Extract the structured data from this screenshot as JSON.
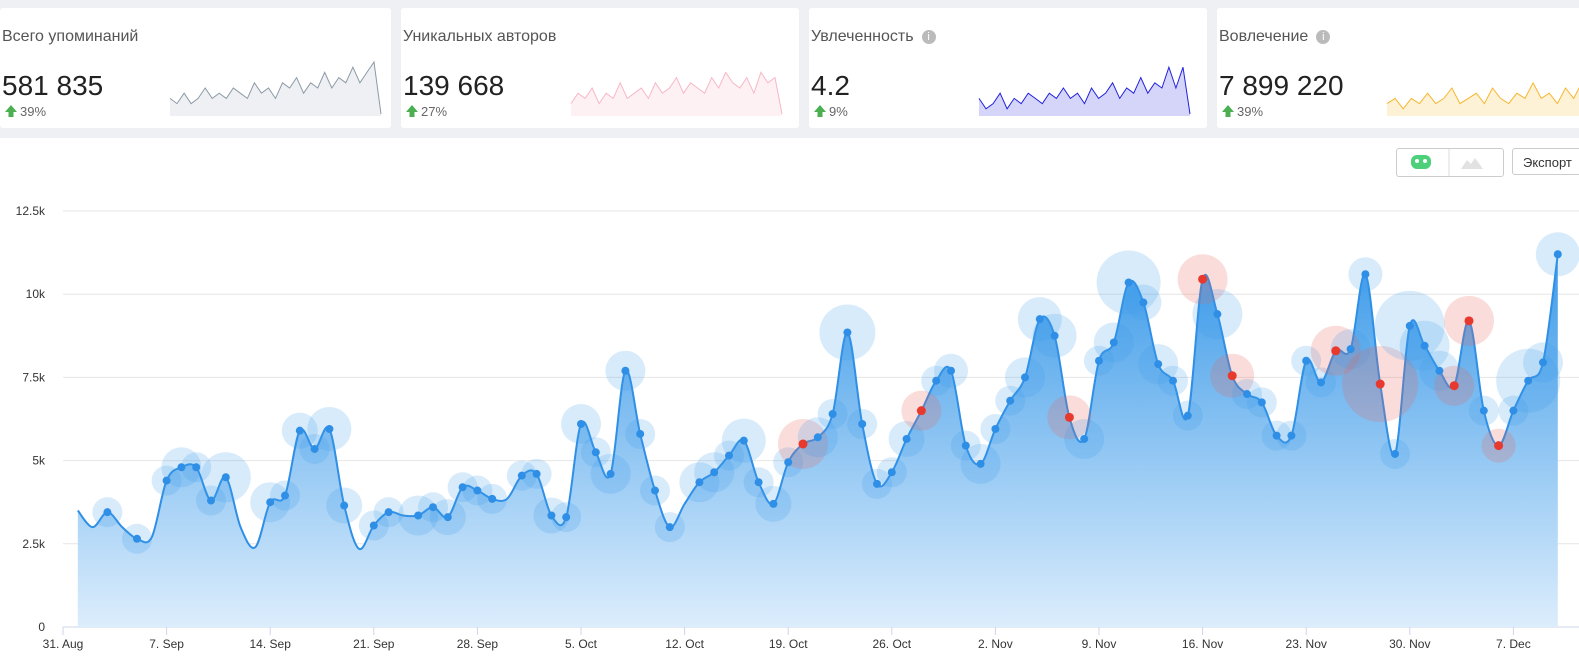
{
  "cards": [
    {
      "title": "Всего упоминаний",
      "value": "581 835",
      "change": "39%",
      "info": false
    },
    {
      "title": "Уникальных авторов",
      "value": "139 668",
      "change": "27%",
      "info": false
    },
    {
      "title": "Увлеченность",
      "value": "4.2",
      "change": "9%",
      "info": true
    },
    {
      "title": "Вовлечение",
      "value": "7 899 220",
      "change": "39%",
      "info": true
    }
  ],
  "export_button": "Экспорт",
  "chart_data": [
    {
      "type": "bubble-area",
      "x": [
        1,
        2,
        3,
        4,
        5,
        6,
        7,
        8,
        9,
        10,
        11,
        12,
        13,
        14,
        15,
        16,
        17,
        18,
        19,
        20,
        21,
        22,
        23,
        24,
        25,
        26,
        27,
        28,
        29,
        30,
        31,
        32,
        33,
        34,
        35,
        36,
        37,
        38,
        39,
        40,
        41,
        42,
        43,
        44,
        45,
        46,
        47,
        48,
        49,
        50,
        51,
        52,
        53,
        54,
        55,
        56,
        57,
        58,
        59,
        60,
        61,
        62,
        63,
        64,
        65,
        66,
        67,
        68,
        69,
        70,
        71,
        72,
        73,
        74,
        75,
        76,
        77,
        78,
        79,
        80,
        81,
        82,
        83,
        84,
        85,
        86,
        87,
        88,
        89,
        90,
        91,
        92,
        93,
        94,
        95,
        96,
        97,
        98,
        99,
        100,
        101
      ],
      "series": [
        {
          "color": "#2f8fe6",
          "values": [
            3500,
            3000,
            3450,
            3000,
            2650,
            2700,
            4400,
            4800,
            4800,
            3800,
            4500,
            3000,
            2400,
            3750,
            3950,
            5900,
            5350,
            5950,
            3650,
            2350,
            3050,
            3450,
            3350,
            3350,
            3600,
            3300,
            4200,
            4100,
            3850,
            3850,
            4550,
            4600,
            3350,
            3300,
            6100,
            5250,
            4600,
            7700,
            5800,
            4100,
            3000,
            3700,
            4350,
            4650,
            5150,
            5600,
            4350,
            3700,
            4950,
            5500,
            5700,
            6400,
            8850,
            6100,
            4300,
            4650,
            5650,
            6500,
            7400,
            7700,
            5450,
            4900,
            5950,
            6800,
            7500,
            9250,
            8750,
            6300,
            5650,
            8000,
            8550,
            10350,
            9750,
            7900,
            7400,
            6350,
            10450,
            9400,
            7550,
            7000,
            6750,
            5750,
            5750,
            8000,
            7350,
            8300,
            8350,
            10600,
            7300,
            5200,
            9050,
            8450,
            7700,
            7250,
            9200,
            6500,
            5450,
            6500,
            7400,
            7950,
            11200
          ],
          "sizes": [
            0,
            0,
            15,
            0,
            15,
            0,
            15,
            20,
            15,
            15,
            25,
            0,
            0,
            20,
            15,
            18,
            15,
            22,
            18,
            0,
            15,
            15,
            0,
            20,
            15,
            18,
            15,
            15,
            15,
            0,
            15,
            15,
            18,
            15,
            20,
            15,
            20,
            20,
            15,
            15,
            15,
            0,
            20,
            20,
            15,
            22,
            15,
            18,
            15,
            25,
            20,
            15,
            28,
            15,
            15,
            15,
            18,
            20,
            15,
            17,
            15,
            20,
            15,
            15,
            20,
            22,
            22,
            22,
            20,
            15,
            20,
            32,
            18,
            20,
            15,
            15,
            25,
            25,
            22,
            15,
            15,
            15,
            15,
            15,
            15,
            25,
            20,
            17,
            38,
            15,
            35,
            25,
            20,
            20,
            25,
            15,
            17,
            15,
            32,
            20,
            22
          ]
        },
        {
          "color": "#e8392e",
          "values": [
            null,
            null,
            null,
            null,
            null,
            null,
            null,
            null,
            null,
            null,
            null,
            null,
            null,
            null,
            null,
            null,
            null,
            null,
            null,
            null,
            null,
            null,
            null,
            null,
            null,
            null,
            null,
            null,
            null,
            null,
            null,
            null,
            null,
            null,
            null,
            null,
            null,
            null,
            null,
            null,
            null,
            null,
            null,
            null,
            null,
            null,
            null,
            null,
            null,
            5500,
            null,
            null,
            null,
            null,
            null,
            null,
            null,
            6500,
            null,
            null,
            null,
            null,
            null,
            null,
            null,
            null,
            null,
            6300,
            null,
            null,
            null,
            null,
            null,
            null,
            null,
            null,
            10450,
            null,
            7550,
            null,
            null,
            null,
            null,
            null,
            null,
            8300,
            null,
            null,
            7300,
            null,
            null,
            null,
            null,
            7250,
            9200,
            null,
            5450,
            null,
            null,
            null,
            null
          ]
        }
      ],
      "xlim": [
        0,
        102
      ],
      "xticks": [
        {
          "value": 0,
          "label": "31. Aug"
        },
        {
          "value": 7,
          "label": "7. Sep"
        },
        {
          "value": 14,
          "label": "14. Sep"
        },
        {
          "value": 21,
          "label": "21. Sep"
        },
        {
          "value": 28,
          "label": "28. Sep"
        },
        {
          "value": 35,
          "label": "5. Oct"
        },
        {
          "value": 42,
          "label": "12. Oct"
        },
        {
          "value": 49,
          "label": "19. Oct"
        },
        {
          "value": 56,
          "label": "26. Oct"
        },
        {
          "value": 63,
          "label": "2. Nov"
        },
        {
          "value": 70,
          "label": "9. Nov"
        },
        {
          "value": 77,
          "label": "16. Nov"
        },
        {
          "value": 84,
          "label": "23. Nov"
        },
        {
          "value": 91,
          "label": "30. Nov"
        },
        {
          "value": 98,
          "label": "7. Dec"
        }
      ],
      "ylim": [
        0,
        12500
      ],
      "yticks": [
        0,
        {
          "value": 2500,
          "label": "2.5k"
        },
        {
          "value": 5000,
          "label": "5k"
        },
        {
          "value": 7500,
          "label": "7.5k"
        },
        {
          "value": 10000,
          "label": "10k"
        },
        {
          "value": 12500,
          "label": "12.5k"
        }
      ],
      "grid": true
    },
    {
      "type": "sparkline",
      "color": "#8c9aa6",
      "fill": "#eef0f3",
      "ylim": [
        0,
        10
      ],
      "values": [
        3,
        2,
        4,
        2,
        3,
        5,
        3,
        4,
        3,
        5,
        4,
        3,
        6,
        4,
        5,
        3,
        6,
        5,
        7,
        4,
        6,
        5,
        8,
        5,
        7,
        6,
        9,
        6,
        8,
        10,
        0
      ]
    },
    {
      "type": "sparkline",
      "color": "#f7b7c5",
      "fill": "#fdf1f4",
      "ylim": [
        0,
        10
      ],
      "values": [
        2,
        4,
        3,
        5,
        2,
        4,
        3,
        6,
        3,
        4,
        5,
        3,
        6,
        4,
        5,
        7,
        4,
        6,
        5,
        4,
        7,
        5,
        8,
        6,
        5,
        7,
        4,
        8,
        6,
        7,
        0
      ]
    },
    {
      "type": "sparkline",
      "color": "#2222dd",
      "fill": "#d5d5fa",
      "ylim": [
        0,
        10
      ],
      "values": [
        3,
        1,
        2,
        4,
        1,
        3,
        2,
        4,
        3,
        2,
        4,
        3,
        5,
        3,
        4,
        2,
        5,
        3,
        4,
        6,
        3,
        5,
        4,
        7,
        4,
        6,
        5,
        9,
        5,
        9,
        0
      ]
    },
    {
      "type": "sparkline",
      "color": "#f5b72f",
      "fill": "#fdf1d6",
      "ylim": [
        0,
        10
      ],
      "values": [
        2,
        3,
        1,
        3,
        2,
        4,
        2,
        3,
        5,
        2,
        3,
        4,
        2,
        5,
        3,
        2,
        4,
        3,
        6,
        3,
        4,
        2,
        5,
        3,
        6,
        4,
        3
      ]
    }
  ]
}
